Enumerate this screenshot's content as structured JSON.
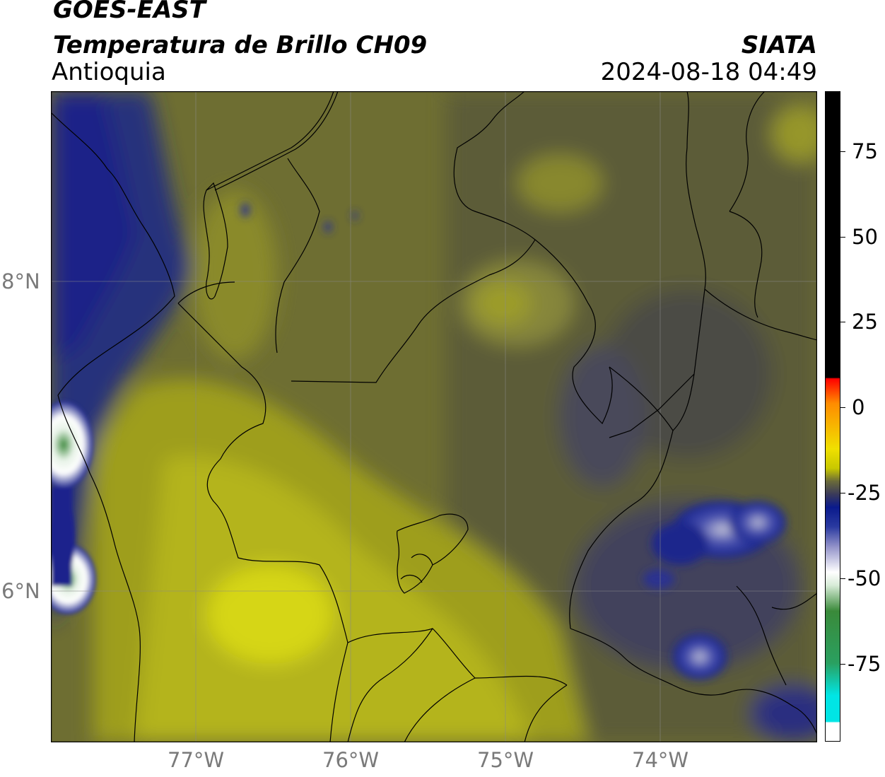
{
  "header": {
    "satellite": "GOES-EAST",
    "product": "Temperatura de Brillo CH09",
    "region": "Antioquia",
    "agency": "SIATA",
    "timestamp": "2024-08-18 04:49"
  },
  "map": {
    "lon_ticks": [
      "77°W",
      "76°W",
      "75°W",
      "74°W"
    ],
    "lat_ticks": [
      "8°N",
      "6°N"
    ],
    "gridlines": true
  },
  "colorbar": {
    "ticks": [
      "75",
      "50",
      "25",
      "0",
      "-25",
      "-50",
      "-75"
    ],
    "range": [
      -95,
      92
    ],
    "colors": [
      "#ffffff",
      "#00e5e5",
      "#3a8a3a",
      "#e8ffe8",
      "#ffffff",
      "#101a8c",
      "#4a4a4a",
      "#e6e600",
      "#ff8c00",
      "#ff0000",
      "#000000"
    ]
  }
}
